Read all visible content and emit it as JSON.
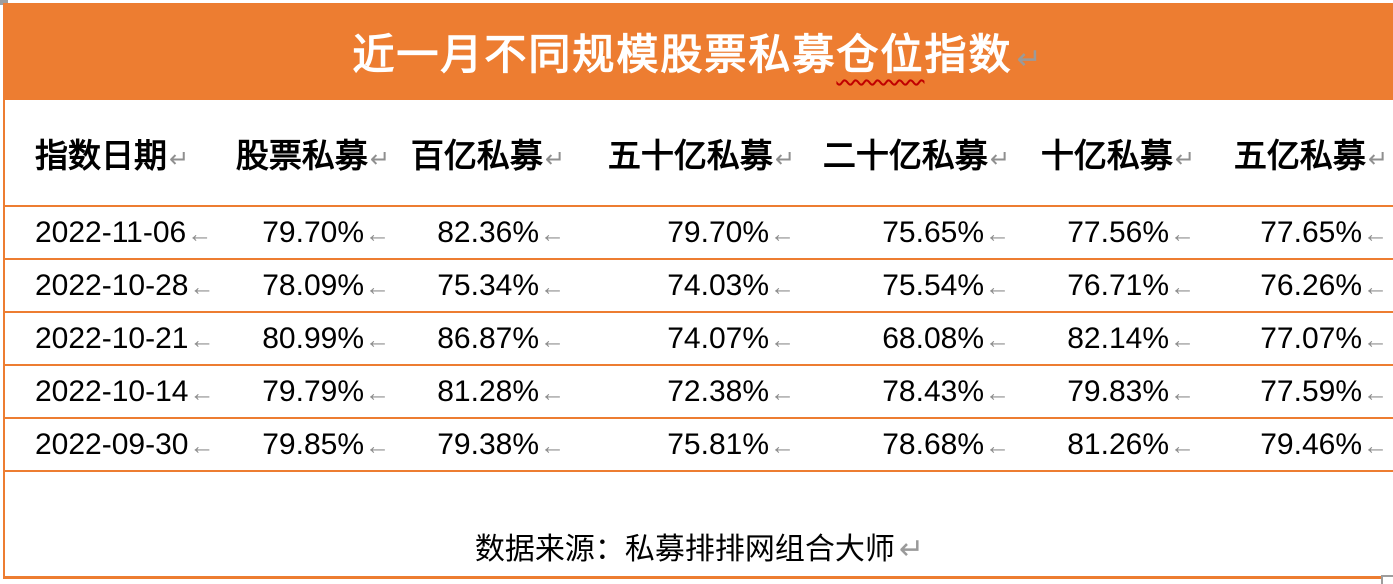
{
  "title": {
    "pre": "近一月不同规模股票私募",
    "misspelled": "仓位",
    "post": "指数"
  },
  "table": {
    "headers": [
      "指数日期",
      "股票私募",
      "百亿私募",
      "五十亿私募",
      "二十亿私募",
      "十亿私募",
      "五亿私募"
    ],
    "rows": [
      [
        "2022-11-06",
        "79.70%",
        "82.36%",
        "79.70%",
        "75.65%",
        "77.56%",
        "77.65%"
      ],
      [
        "2022-10-28",
        "78.09%",
        "75.34%",
        "74.03%",
        "75.54%",
        "76.71%",
        "76.26%"
      ],
      [
        "2022-10-21",
        "80.99%",
        "86.87%",
        "74.07%",
        "68.08%",
        "82.14%",
        "77.07%"
      ],
      [
        "2022-10-14",
        "79.79%",
        "81.28%",
        "72.38%",
        "78.43%",
        "79.83%",
        "77.59%"
      ],
      [
        "2022-09-30",
        "79.85%",
        "79.38%",
        "75.81%",
        "78.68%",
        "81.26%",
        "79.46%"
      ]
    ]
  },
  "footer": {
    "text": "数据来源：私募排排网组合大师"
  },
  "marks": {
    "paragraph": "↵",
    "cell_end": "←"
  },
  "colors": {
    "accent_orange": "#ED7D31",
    "spellcheck_red": "#C00000",
    "formatting_mark_gray": "#8F8F8F",
    "title_text": "#FFFFFF",
    "body_text": "#000000"
  }
}
